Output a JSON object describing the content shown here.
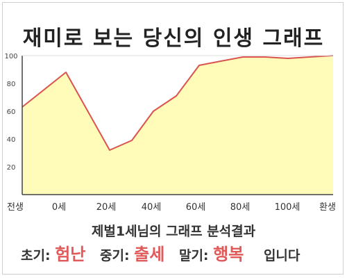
{
  "title": "재미로 보는 당신의 인생 그래프",
  "subtitle": "제벌1세님의 그래프 분석결과",
  "result": {
    "early_label": "초기:",
    "early_value": "험난",
    "mid_label": "중기:",
    "mid_value": "출세",
    "late_label": "말기:",
    "late_value": "행복",
    "ending": "입니다"
  },
  "colors": {
    "line": "#d9534f",
    "fill": "#fffbb8",
    "accent": "#e05a5a"
  },
  "chart_data": {
    "type": "area",
    "x_tick_labels": [
      "전생",
      "0세",
      "20세",
      "40세",
      "60세",
      "80세",
      "100세",
      "환생"
    ],
    "ylim": [
      0,
      100
    ],
    "y_ticks": [
      20,
      40,
      60,
      80,
      100
    ],
    "x": [
      "전생",
      "0세",
      "20세",
      "30세",
      "40세",
      "50세",
      "60세",
      "70세",
      "80세",
      "90세",
      "100세",
      "110세",
      "환생"
    ],
    "values": [
      63,
      88,
      32,
      39,
      60,
      71,
      93,
      96,
      99,
      99,
      98,
      99,
      100
    ],
    "grid": false,
    "legend": "none"
  }
}
